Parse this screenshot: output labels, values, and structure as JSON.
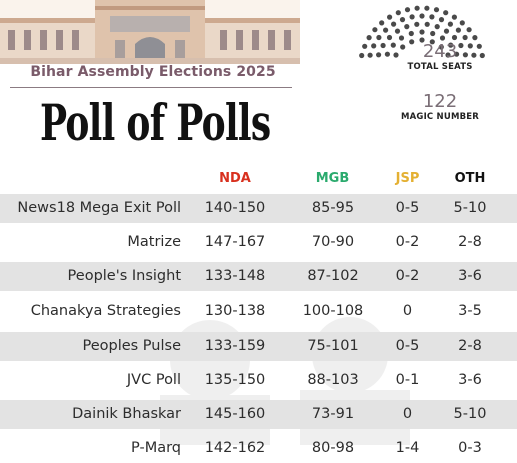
{
  "header": {
    "subtitle": "Bihar Assembly Elections 2025",
    "title": "Poll of Polls",
    "total_seats_value": "243",
    "total_seats_label": "TOTAL SEATS",
    "magic_number_value": "122",
    "magic_number_label": "MAGIC NUMBER"
  },
  "colors": {
    "nda": "#d8301e",
    "mgb": "#2aaa6d",
    "jsp": "#e4b032",
    "oth": "#111111",
    "seat_dot": "#4a4a4a"
  },
  "table": {
    "columns": [
      "NDA",
      "MGB",
      "JSP",
      "OTH"
    ],
    "rows": [
      {
        "pollster": "News18 Mega Exit Poll",
        "nda": "140-150",
        "mgb": "85-95",
        "jsp": "0-5",
        "oth": "5-10"
      },
      {
        "pollster": "Matrize",
        "nda": "147-167",
        "mgb": "70-90",
        "jsp": "0-2",
        "oth": "2-8"
      },
      {
        "pollster": "People's Insight",
        "nda": "133-148",
        "mgb": "87-102",
        "jsp": "0-2",
        "oth": "3-6"
      },
      {
        "pollster": "Chanakya Strategies",
        "nda": "130-138",
        "mgb": "100-108",
        "jsp": "0",
        "oth": "3-5"
      },
      {
        "pollster": "Peoples Pulse",
        "nda": "133-159",
        "mgb": "75-101",
        "jsp": "0-5",
        "oth": "2-8"
      },
      {
        "pollster": "JVC Poll",
        "nda": "135-150",
        "mgb": "88-103",
        "jsp": "0-1",
        "oth": "3-6"
      },
      {
        "pollster": "Dainik Bhaskar",
        "nda": "145-160",
        "mgb": "73-91",
        "jsp": "0",
        "oth": "5-10"
      },
      {
        "pollster": "P-Marq",
        "nda": "142-162",
        "mgb": "80-98",
        "jsp": "1-4",
        "oth": "0-3"
      }
    ]
  }
}
